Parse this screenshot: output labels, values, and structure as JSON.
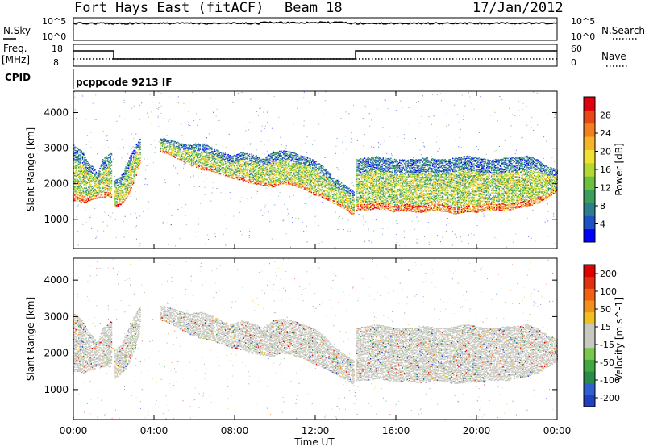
{
  "header": {
    "station": "Fort Hays East (fitACF)",
    "beam": "Beam 18",
    "date": "17/Jan/2012"
  },
  "noise_panel": {
    "left_label": "N.Sky",
    "right_label": "N.Search",
    "ticks_left": [
      "10^5",
      "10^0"
    ],
    "ticks_right": [
      "10^5",
      "10^0"
    ]
  },
  "freq_panel": {
    "left_label_top": "Freq.",
    "left_label_bottom": "[MHz]",
    "right_label": "Nave",
    "ticks_left": [
      "18",
      "8"
    ],
    "ticks_right": [
      "60",
      "0"
    ]
  },
  "cpid_panel": {
    "label": "CPID",
    "text": "pcppcode 9213 IF"
  },
  "chart_data": [
    {
      "type": "heatmap",
      "name": "power",
      "ylabel": "Slant Range [km]",
      "ylim": [
        180,
        4600
      ],
      "yticks": [
        1000,
        2000,
        3000,
        4000
      ],
      "colorbar_label": "Power [dB]",
      "colorbar_ticks": [
        4,
        8,
        12,
        16,
        20,
        24,
        28
      ],
      "colorbar_range": [
        0,
        32
      ],
      "colors": [
        "#0000ff",
        "#1e50c8",
        "#2e7d8c",
        "#3c9e5a",
        "#6cc040",
        "#b4d832",
        "#f0e030",
        "#f8b428",
        "#f08020",
        "#e84818",
        "#e00010"
      ],
      "echo_bands": [
        {
          "hours": [
            0,
            1.9
          ],
          "top": [
            3100,
            3000,
            2900,
            2600,
            2500,
            2300,
            2700,
            2800,
            2900
          ],
          "bottom": [
            1500,
            1500,
            1450,
            1500,
            1550,
            1600,
            1600,
            1650,
            1600
          ]
        },
        {
          "hours": [
            2.0,
            3.3
          ],
          "top": [
            2100,
            2200,
            2600,
            3000,
            3300
          ],
          "bottom": [
            1300,
            1400,
            1600,
            2000,
            2600
          ]
        },
        {
          "hours": [
            4.3,
            13.9
          ],
          "top": [
            3300,
            3250,
            3150,
            3100,
            3150,
            3050,
            2900,
            2800,
            2900,
            2850,
            2700,
            2900,
            2950,
            2900,
            2800,
            2700,
            2500,
            2200,
            2000,
            1800
          ],
          "bottom": [
            2900,
            2800,
            2650,
            2500,
            2400,
            2350,
            2250,
            2150,
            2100,
            2000,
            1950,
            1900,
            2000,
            1950,
            1850,
            1700,
            1600,
            1450,
            1300,
            1100
          ]
        },
        {
          "hours": [
            14.0,
            24.0
          ],
          "top": [
            2700,
            2750,
            2800,
            2750,
            2700,
            2700,
            2700,
            2750,
            2700,
            2700,
            2750,
            2800,
            2750,
            2700,
            2700,
            2750,
            2750,
            2800,
            2700,
            2500,
            2400
          ],
          "bottom": [
            1250,
            1250,
            1300,
            1250,
            1200,
            1250,
            1200,
            1200,
            1250,
            1200,
            1150,
            1200,
            1200,
            1250,
            1250,
            1250,
            1300,
            1350,
            1450,
            1600,
            1800
          ]
        }
      ]
    },
    {
      "type": "heatmap",
      "name": "velocity",
      "xlabel": "Time UT",
      "ylabel": "Slant Range [km]",
      "xlim": [
        0,
        24
      ],
      "xticks": [
        "00:00",
        "04:00",
        "08:00",
        "12:00",
        "16:00",
        "20:00",
        "00:00"
      ],
      "ylim": [
        180,
        4600
      ],
      "yticks": [
        1000,
        2000,
        3000,
        4000
      ],
      "colorbar_label": "Velocity [m s^-1]",
      "colorbar_ticks": [
        200,
        100,
        50,
        15,
        -15,
        -50,
        -100,
        -200
      ],
      "colors": [
        "#2040c0",
        "#3060d0",
        "#2a8a4a",
        "#40a840",
        "#78c850",
        "#c8c8c0",
        "#c8c8c0",
        "#f0c020",
        "#f09020",
        "#f06010",
        "#e03010",
        "#e00000"
      ]
    }
  ]
}
